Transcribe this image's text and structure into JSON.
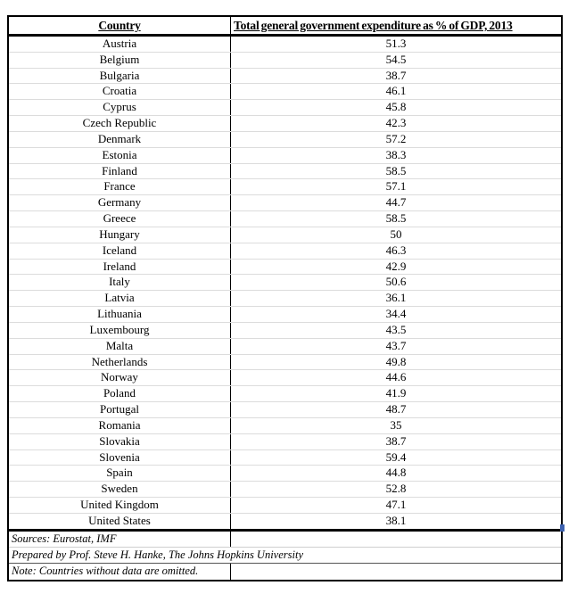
{
  "table": {
    "headers": {
      "country": "Country",
      "value": "Total general government expenditure as % of GDP, 2013"
    },
    "rows": [
      {
        "country": "Austria",
        "value": "51.3"
      },
      {
        "country": "Belgium",
        "value": "54.5"
      },
      {
        "country": "Bulgaria",
        "value": "38.7"
      },
      {
        "country": "Croatia",
        "value": "46.1"
      },
      {
        "country": "Cyprus",
        "value": "45.8"
      },
      {
        "country": "Czech Republic",
        "value": "42.3"
      },
      {
        "country": "Denmark",
        "value": "57.2"
      },
      {
        "country": "Estonia",
        "value": "38.3"
      },
      {
        "country": "Finland",
        "value": "58.5"
      },
      {
        "country": "France",
        "value": "57.1"
      },
      {
        "country": "Germany",
        "value": "44.7"
      },
      {
        "country": "Greece",
        "value": "58.5"
      },
      {
        "country": "Hungary",
        "value": "50"
      },
      {
        "country": "Iceland",
        "value": "46.3"
      },
      {
        "country": "Ireland",
        "value": "42.9"
      },
      {
        "country": "Italy",
        "value": "50.6"
      },
      {
        "country": "Latvia",
        "value": "36.1"
      },
      {
        "country": "Lithuania",
        "value": "34.4"
      },
      {
        "country": "Luxembourg",
        "value": "43.5"
      },
      {
        "country": "Malta",
        "value": "43.7"
      },
      {
        "country": "Netherlands",
        "value": "49.8"
      },
      {
        "country": "Norway",
        "value": "44.6"
      },
      {
        "country": "Poland",
        "value": "41.9"
      },
      {
        "country": "Portugal",
        "value": "48.7"
      },
      {
        "country": "Romania",
        "value": "35"
      },
      {
        "country": "Slovakia",
        "value": "38.7"
      },
      {
        "country": "Slovenia",
        "value": "59.4"
      },
      {
        "country": "Spain",
        "value": "44.8"
      },
      {
        "country": "Sweden",
        "value": "52.8"
      },
      {
        "country": "United Kingdom",
        "value": "47.1"
      },
      {
        "country": "United States",
        "value": "38.1"
      }
    ],
    "footnotes": [
      "Sources: Eurostat, IMF",
      "Prepared by Prof. Steve H. Hanke, The Johns Hopkins University",
      "Note: Countries without data are omitted."
    ]
  },
  "colors": {
    "border": "#000000",
    "row_separator": "#dcdcdc",
    "fill_handle_blue": "#3f63b0",
    "background": "#ffffff",
    "text": "#000000"
  },
  "chart_data": {
    "type": "table",
    "title": "Total general government expenditure as % of GDP, 2013",
    "columns": [
      "Country",
      "Total general government expenditure as % of GDP, 2013"
    ],
    "categories": [
      "Austria",
      "Belgium",
      "Bulgaria",
      "Croatia",
      "Cyprus",
      "Czech Republic",
      "Denmark",
      "Estonia",
      "Finland",
      "France",
      "Germany",
      "Greece",
      "Hungary",
      "Iceland",
      "Ireland",
      "Italy",
      "Latvia",
      "Lithuania",
      "Luxembourg",
      "Malta",
      "Netherlands",
      "Norway",
      "Poland",
      "Portugal",
      "Romania",
      "Slovakia",
      "Slovenia",
      "Spain",
      "Sweden",
      "United Kingdom",
      "United States"
    ],
    "values": [
      51.3,
      54.5,
      38.7,
      46.1,
      45.8,
      42.3,
      57.2,
      38.3,
      58.5,
      57.1,
      44.7,
      58.5,
      50,
      46.3,
      42.9,
      50.6,
      36.1,
      34.4,
      43.5,
      43.7,
      49.8,
      44.6,
      41.9,
      48.7,
      35,
      38.7,
      59.4,
      44.8,
      52.8,
      47.1,
      38.1
    ],
    "unit": "% of GDP",
    "year": "2013",
    "notes": [
      "Sources: Eurostat, IMF",
      "Prepared by Prof. Steve H. Hanke, The Johns Hopkins University",
      "Note: Countries without data are omitted."
    ]
  }
}
